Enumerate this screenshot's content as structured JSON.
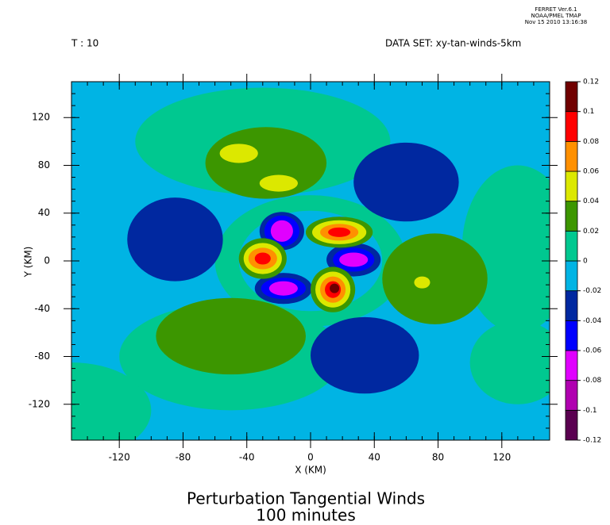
{
  "header": {
    "program": "FERRET  Ver.6.1",
    "org": "NOAA/PMEL TMAP",
    "date": "Nov 15 2010 13:16:38"
  },
  "chart_data": {
    "type": "contour",
    "title": "Perturbation Tangential Winds",
    "subtitle": "100 minutes",
    "time_label": "T : 10",
    "dataset_label": "DATA SET: xy-tan-winds-5km",
    "xlabel": "X (KM)",
    "ylabel": "Y (KM)",
    "xlim": [
      -150,
      150
    ],
    "ylim": [
      -150,
      150
    ],
    "xticks": [
      -120,
      -80,
      -40,
      0,
      40,
      80,
      120
    ],
    "yticks": [
      -120,
      -80,
      -40,
      0,
      40,
      80,
      120
    ],
    "background_value": -0.01,
    "levels": [
      -0.12,
      -0.1,
      -0.08,
      -0.06,
      -0.04,
      -0.02,
      0,
      0.02,
      0.04,
      0.06,
      0.08,
      0.1,
      0.12
    ],
    "colors": [
      "#5a0050",
      "#b000b0",
      "#e000ff",
      "#0000ff",
      "#0028a0",
      "#00b4e4",
      "#00c890",
      "#3c9600",
      "#dce800",
      "#ff9000",
      "#ff0000",
      "#700000"
    ],
    "features": [
      {
        "x": -30,
        "y": 100,
        "rx": 80,
        "ry": 45,
        "value": 0.01
      },
      {
        "x": 130,
        "y": 10,
        "rx": 35,
        "ry": 70,
        "value": 0.01
      },
      {
        "x": -150,
        "y": -125,
        "rx": 50,
        "ry": 40,
        "value": 0.01
      },
      {
        "x": -50,
        "y": -80,
        "rx": 70,
        "ry": 45,
        "value": 0.01
      },
      {
        "x": 130,
        "y": -85,
        "rx": 30,
        "ry": 35,
        "value": 0.01
      },
      {
        "x": 0,
        "y": 0,
        "rx": 60,
        "ry": 55,
        "value": 0.01
      },
      {
        "x": -28,
        "y": 82,
        "rx": 38,
        "ry": 30,
        "value": 0.03
      },
      {
        "x": 78,
        "y": -15,
        "rx": 33,
        "ry": 38,
        "value": 0.03
      },
      {
        "x": -50,
        "y": -63,
        "rx": 47,
        "ry": 32,
        "value": 0.03
      },
      {
        "x": -45,
        "y": 90,
        "rx": 12,
        "ry": 8,
        "value": 0.05
      },
      {
        "x": -20,
        "y": 65,
        "rx": 12,
        "ry": 7,
        "value": 0.05
      },
      {
        "x": 70,
        "y": -18,
        "rx": 5,
        "ry": 5,
        "value": 0.05
      },
      {
        "x": 60,
        "y": 66,
        "rx": 33,
        "ry": 33,
        "value": -0.03
      },
      {
        "x": -85,
        "y": 18,
        "rx": 30,
        "ry": 35,
        "value": -0.03
      },
      {
        "x": 34,
        "y": -79,
        "rx": 34,
        "ry": 32,
        "value": -0.03
      },
      {
        "x": 0,
        "y": 0,
        "rx": 45,
        "ry": 42,
        "value": -0.01
      },
      {
        "x": -18,
        "y": 25,
        "rx": 14,
        "ry": 16,
        "value": -0.03
      },
      {
        "x": -18,
        "y": 25,
        "rx": 11,
        "ry": 13,
        "value": -0.05
      },
      {
        "x": -18,
        "y": 25,
        "rx": 7,
        "ry": 9,
        "value": -0.07
      },
      {
        "x": 27,
        "y": 1,
        "rx": 17,
        "ry": 14,
        "value": -0.03
      },
      {
        "x": 27,
        "y": 1,
        "rx": 13,
        "ry": 10,
        "value": -0.05
      },
      {
        "x": 27,
        "y": 1,
        "rx": 9,
        "ry": 6,
        "value": -0.07
      },
      {
        "x": -17,
        "y": -23,
        "rx": 18,
        "ry": 13,
        "value": -0.03
      },
      {
        "x": -17,
        "y": -23,
        "rx": 14,
        "ry": 9,
        "value": -0.05
      },
      {
        "x": -17,
        "y": -23,
        "rx": 9,
        "ry": 6,
        "value": -0.07
      },
      {
        "x": 18,
        "y": 24,
        "rx": 21,
        "ry": 13,
        "value": 0.03
      },
      {
        "x": 18,
        "y": 24,
        "rx": 17,
        "ry": 10,
        "value": 0.05
      },
      {
        "x": 18,
        "y": 24,
        "rx": 12,
        "ry": 7,
        "value": 0.07
      },
      {
        "x": 18,
        "y": 24,
        "rx": 7,
        "ry": 4,
        "value": 0.09
      },
      {
        "x": -30,
        "y": 2,
        "rx": 15,
        "ry": 17,
        "value": 0.03
      },
      {
        "x": -30,
        "y": 2,
        "rx": 12,
        "ry": 13,
        "value": 0.05
      },
      {
        "x": -30,
        "y": 2,
        "rx": 9,
        "ry": 9,
        "value": 0.07
      },
      {
        "x": -30,
        "y": 2,
        "rx": 5,
        "ry": 5,
        "value": 0.09
      },
      {
        "x": 14,
        "y": -24,
        "rx": 14,
        "ry": 19,
        "value": 0.03
      },
      {
        "x": 14,
        "y": -24,
        "rx": 11,
        "ry": 15,
        "value": 0.05
      },
      {
        "x": 14,
        "y": -24,
        "rx": 8,
        "ry": 11,
        "value": 0.07
      },
      {
        "x": 14,
        "y": -24,
        "rx": 5,
        "ry": 7,
        "value": 0.09
      },
      {
        "x": 15,
        "y": -23,
        "rx": 3,
        "ry": 4,
        "value": 0.11
      }
    ]
  }
}
